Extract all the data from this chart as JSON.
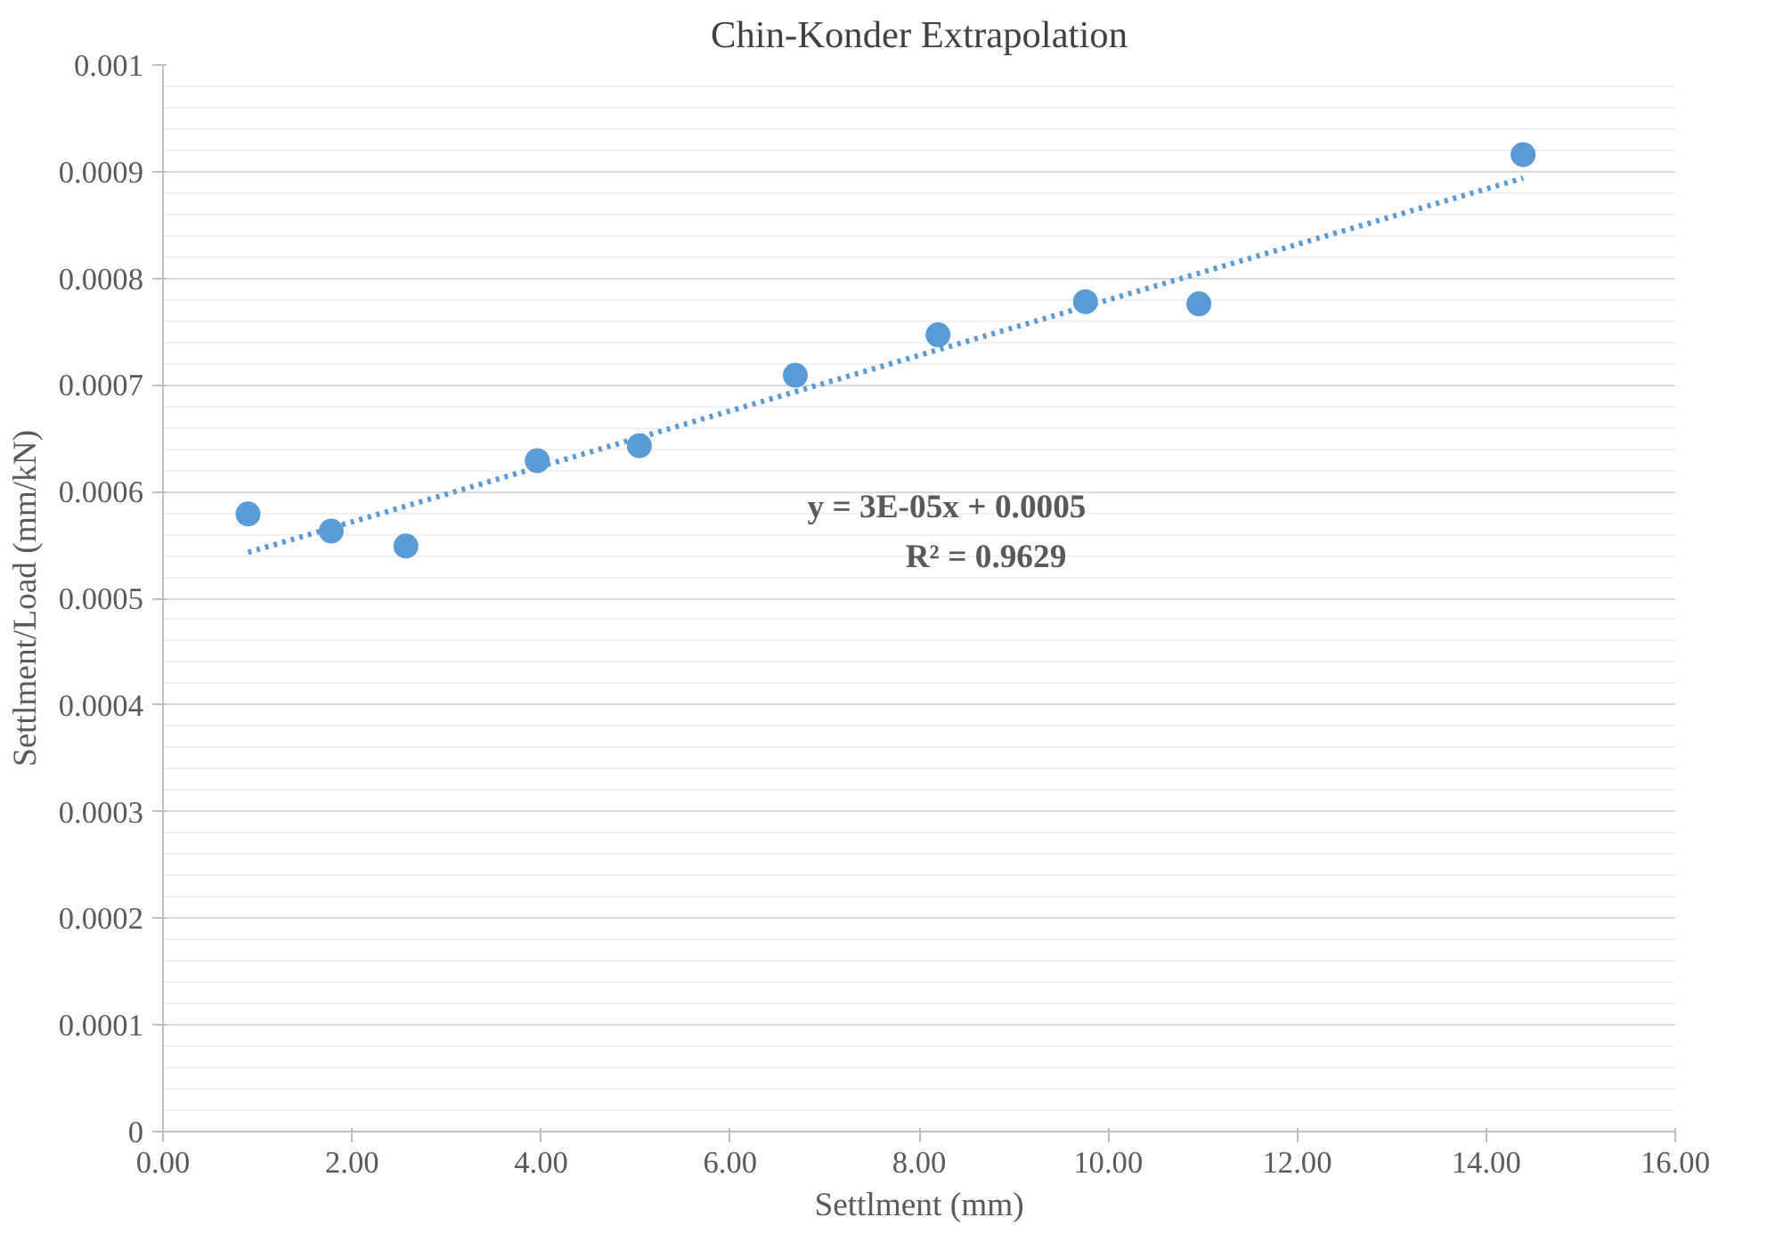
{
  "chart_data": {
    "type": "scatter",
    "title": "Chin-Konder Extrapolation",
    "xlabel": "Settlment (mm)",
    "ylabel": "Settlment/Load (mm/kN)",
    "series": [
      {
        "color": "#5b9bd5",
        "x": [
          0.9,
          1.78,
          2.57,
          3.96,
          5.04,
          6.69,
          8.2,
          9.76,
          10.96,
          14.39
        ],
        "values": [
          0.000579,
          0.000563,
          0.000549,
          0.000629,
          0.000643,
          0.000709,
          0.000747,
          0.000778,
          0.000776,
          0.000916
        ],
        "marker": "circle"
      },
      {
        "type": "line",
        "color": "#5b9bd5",
        "x": [
          0.9,
          14.39
        ],
        "values": [
          0.000543,
          0.000894
        ],
        "line_style": "dotted",
        "marker": "none"
      }
    ],
    "annotations": [
      "y = 3E-05x + 0.0005",
      "R² = 0.9629"
    ],
    "xlim": [
      0,
      16
    ],
    "ylim": [
      0,
      0.001
    ],
    "xticks": [
      {
        "value": 0,
        "label": "0.00"
      },
      {
        "value": 2,
        "label": "2.00"
      },
      {
        "value": 4,
        "label": "4.00"
      },
      {
        "value": 6,
        "label": "6.00"
      },
      {
        "value": 8,
        "label": "8.00"
      },
      {
        "value": 10,
        "label": "10.00"
      },
      {
        "value": 12,
        "label": "12.00"
      },
      {
        "value": 14,
        "label": "14.00"
      },
      {
        "value": 16,
        "label": "16.00"
      }
    ],
    "yticks": [
      0,
      0.0001,
      0.0002,
      0.0003,
      0.0004,
      0.0005,
      0.0006,
      0.0007,
      0.0008,
      0.0009,
      0.001
    ],
    "grid": "y"
  }
}
